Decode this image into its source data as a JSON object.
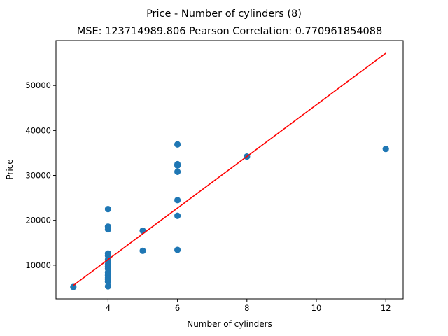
{
  "chart_data": {
    "type": "scatter",
    "title": "Price - Number of cylinders (8)",
    "subtitle": "MSE: 123714989.806 Pearson Correlation: 0.770961854088",
    "xlabel": "Number of cylinders",
    "ylabel": "Price",
    "xlim": [
      2.5,
      12.5
    ],
    "ylim": [
      2500,
      60000
    ],
    "xticks": [
      4,
      6,
      8,
      10,
      12
    ],
    "yticks": [
      10000,
      20000,
      30000,
      40000,
      50000
    ],
    "grid": false,
    "points": {
      "color": "#1f77b4",
      "x": [
        3,
        4,
        4,
        4,
        4,
        4,
        4,
        4,
        4,
        4,
        4,
        4,
        4,
        4,
        4,
        4,
        4,
        5,
        5,
        6,
        6,
        6,
        6,
        6,
        6,
        6,
        8,
        12
      ],
      "y": [
        5150,
        5300,
        6300,
        6800,
        7200,
        7700,
        8000,
        8400,
        9200,
        9700,
        10300,
        11200,
        12100,
        12600,
        18000,
        18600,
        22500,
        13200,
        17700,
        13400,
        21000,
        24500,
        30800,
        32200,
        32500,
        36900,
        34200,
        35900
      ]
    },
    "fit_line": {
      "color": "#ff0000",
      "x": [
        3,
        12
      ],
      "y": [
        5500,
        57200
      ]
    }
  }
}
